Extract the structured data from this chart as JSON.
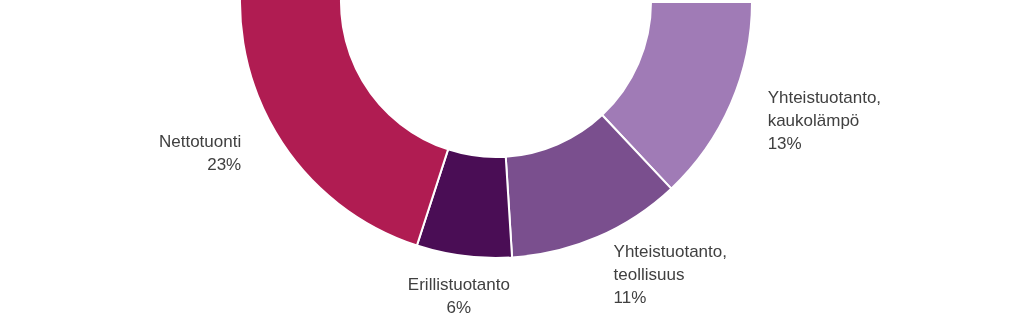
{
  "chart_data": {
    "type": "donut",
    "categories": [
      "Yhteistuotanto, kaukolämpö",
      "Yhteistuotanto, teollisuus",
      "Erillistuotanto",
      "Nettotuonti"
    ],
    "values": [
      13,
      11,
      6,
      23
    ],
    "value_labels": [
      "13%",
      "11%",
      "6%",
      "23%"
    ],
    "colors": [
      "#a07bb6",
      "#7a4f8e",
      "#4a0d55",
      "#b01c52"
    ]
  }
}
